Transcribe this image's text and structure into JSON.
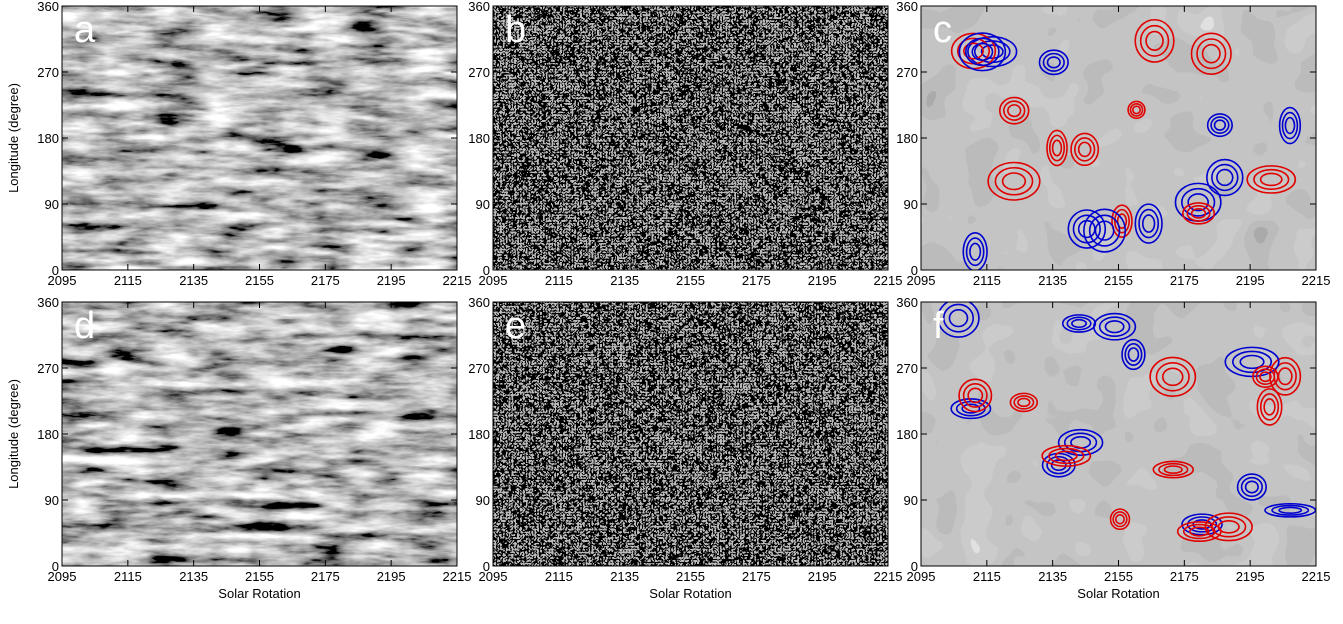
{
  "chart_data": [
    {
      "type": "image",
      "label": "a",
      "ylabel": "Longitude (degree)",
      "xlim": [
        2095,
        2215
      ],
      "ylim": [
        0,
        360
      ],
      "xticks": [
        2095,
        2115,
        2135,
        2155,
        2175,
        2195,
        2215
      ],
      "yticks": [
        0,
        90,
        180,
        270,
        360
      ]
    },
    {
      "type": "image",
      "label": "b",
      "xlim": [
        2095,
        2215
      ],
      "ylim": [
        0,
        360
      ],
      "xticks": [
        2095,
        2115,
        2135,
        2155,
        2175,
        2195,
        2215
      ],
      "yticks": [
        0,
        90,
        180,
        270,
        360
      ]
    },
    {
      "type": "image",
      "label": "c",
      "xlim": [
        2095,
        2215
      ],
      "ylim": [
        0,
        360
      ],
      "xticks": [
        2095,
        2115,
        2135,
        2155,
        2175,
        2195,
        2215
      ],
      "yticks": [
        0,
        90,
        180,
        270,
        360
      ]
    },
    {
      "type": "image",
      "label": "d",
      "xlabel": "Solar Rotation",
      "ylabel": "Longitude (degree)",
      "xlim": [
        2095,
        2215
      ],
      "ylim": [
        0,
        360
      ],
      "xticks": [
        2095,
        2115,
        2135,
        2155,
        2175,
        2195,
        2215
      ],
      "yticks": [
        0,
        90,
        180,
        270,
        360
      ]
    },
    {
      "type": "image",
      "label": "e",
      "xlabel": "Solar Rotation",
      "xlim": [
        2095,
        2215
      ],
      "ylim": [
        0,
        360
      ],
      "xticks": [
        2095,
        2115,
        2135,
        2155,
        2175,
        2195,
        2215
      ],
      "yticks": [
        0,
        90,
        180,
        270,
        360
      ]
    },
    {
      "type": "image",
      "label": "f",
      "xlabel": "Solar Rotation",
      "xlim": [
        2095,
        2215
      ],
      "ylim": [
        0,
        360
      ],
      "xticks": [
        2095,
        2115,
        2135,
        2155,
        2175,
        2195,
        2215
      ],
      "yticks": [
        0,
        90,
        180,
        270,
        360
      ]
    }
  ]
}
